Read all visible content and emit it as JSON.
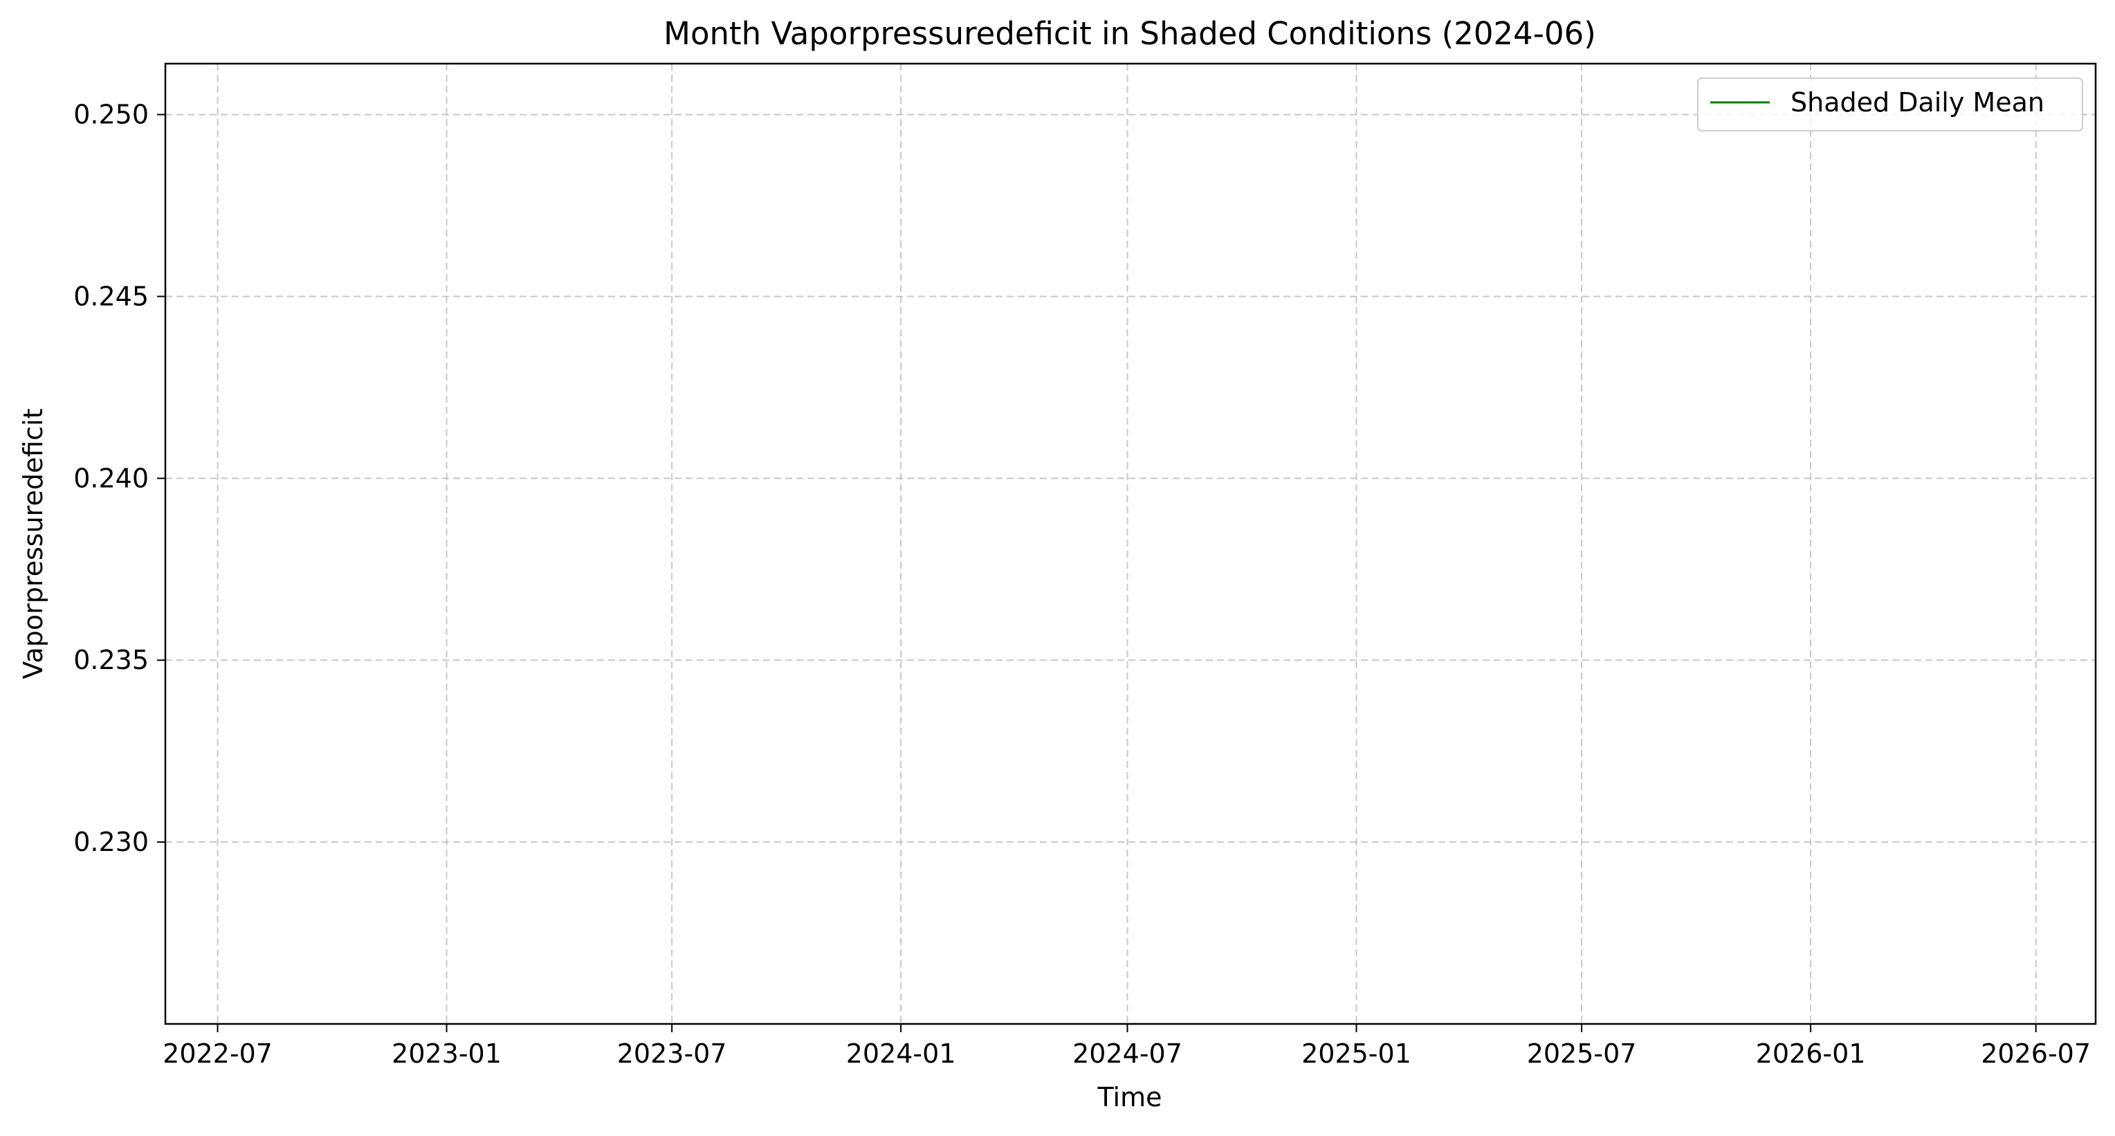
{
  "chart_data": {
    "type": "line",
    "title": "Month Vaporpressuredeficit in Shaded Conditions (2024-06)",
    "xlabel": "Time",
    "ylabel": "Vaporpressuredeficit",
    "x_ticks": [
      "2022-07",
      "2023-01",
      "2023-07",
      "2024-01",
      "2024-07",
      "2025-01",
      "2025-07",
      "2026-01",
      "2026-07"
    ],
    "y_ticks": [
      "0.230",
      "0.235",
      "0.240",
      "0.245",
      "0.250"
    ],
    "xlim": [
      "2022-05-20",
      "2026-08-18"
    ],
    "ylim": [
      0.225,
      0.2514
    ],
    "grid": true,
    "grid_style": "dashed",
    "legend_position": "top-right",
    "series": [
      {
        "name": "Shaded Daily Mean",
        "color": "#008000",
        "x": [],
        "y": []
      }
    ]
  }
}
